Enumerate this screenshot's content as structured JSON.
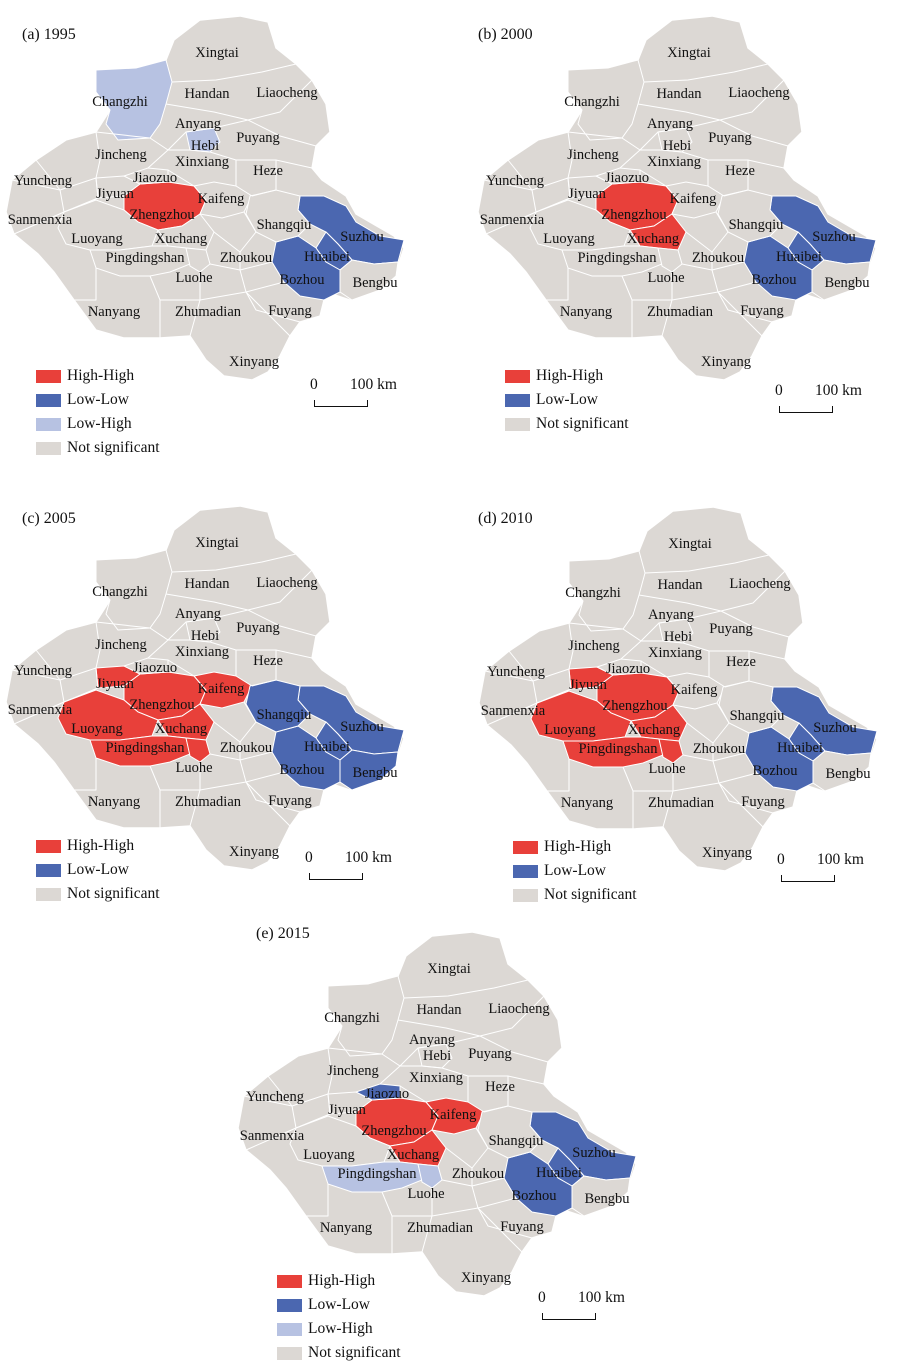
{
  "colors": {
    "high_high": "#e8403a",
    "low_low": "#4b67b0",
    "low_high": "#b7c2e2",
    "not_significant": "#dcd8d4",
    "border": "#ffffff"
  },
  "scale": {
    "zero": "0",
    "distance": "100 km"
  },
  "panels": [
    {
      "title": "(a) 1995",
      "legend": [
        "High-High",
        "Low-Low",
        "Low-High",
        "Not significant"
      ],
      "legend_keys": [
        "high_high",
        "low_low",
        "low_high",
        "not_significant"
      ],
      "classes": {
        "Zhengzhou": "high_high",
        "Suzhou": "low_low",
        "Huaibei": "low_low",
        "Bozhou": "low_low",
        "Changzhi": "low_high",
        "Hebi": "low_high"
      }
    },
    {
      "title": "(b) 2000",
      "legend": [
        "High-High",
        "Low-Low",
        "Not significant"
      ],
      "legend_keys": [
        "high_high",
        "low_low",
        "not_significant"
      ],
      "classes": {
        "Zhengzhou": "high_high",
        "Xuchang": "high_high",
        "Suzhou": "low_low",
        "Huaibei": "low_low",
        "Bozhou": "low_low"
      }
    },
    {
      "title": "(c) 2005",
      "legend": [
        "High-High",
        "Low-Low",
        "Not significant"
      ],
      "legend_keys": [
        "high_high",
        "low_low",
        "not_significant"
      ],
      "classes": {
        "Zhengzhou": "high_high",
        "Luoyang": "high_high",
        "Xuchang": "high_high",
        "Pingdingshan": "high_high",
        "Luohe": "high_high",
        "Jiyuan": "high_high",
        "Kaifeng": "high_high",
        "Suzhou": "low_low",
        "Huaibei": "low_low",
        "Bozhou": "low_low",
        "Bengbu": "low_low",
        "Shangqiu": "low_low"
      }
    },
    {
      "title": "(d) 2010",
      "legend": [
        "High-High",
        "Low-Low",
        "Not significant"
      ],
      "legend_keys": [
        "high_high",
        "low_low",
        "not_significant"
      ],
      "classes": {
        "Zhengzhou": "high_high",
        "Luoyang": "high_high",
        "Xuchang": "high_high",
        "Pingdingshan": "high_high",
        "Luohe": "high_high",
        "Jiyuan": "high_high",
        "Suzhou": "low_low",
        "Huaibei": "low_low",
        "Bozhou": "low_low"
      }
    },
    {
      "title": "(e) 2015",
      "legend": [
        "High-High",
        "Low-Low",
        "Low-High",
        "Not significant"
      ],
      "legend_keys": [
        "high_high",
        "low_low",
        "low_high",
        "not_significant"
      ],
      "classes": {
        "Zhengzhou": "high_high",
        "Kaifeng": "high_high",
        "Xuchang": "high_high",
        "Jiaozuo": "low_low",
        "Suzhou": "low_low",
        "Huaibei": "low_low",
        "Bozhou": "low_low",
        "Pingdingshan": "low_high",
        "Luohe": "low_high"
      }
    }
  ],
  "cities": [
    {
      "id": "Xingtai",
      "name": "Xingtai"
    },
    {
      "id": "Changzhi",
      "name": "Changzhi"
    },
    {
      "id": "Handan",
      "name": "Handan"
    },
    {
      "id": "Liaocheng",
      "name": "Liaocheng"
    },
    {
      "id": "Anyang",
      "name": "Anyang"
    },
    {
      "id": "Hebi",
      "name": "Hebi"
    },
    {
      "id": "Puyang",
      "name": "Puyang"
    },
    {
      "id": "Jincheng",
      "name": "Jincheng"
    },
    {
      "id": "Xinxiang",
      "name": "Xinxiang"
    },
    {
      "id": "Jiaozuo",
      "name": "Jiaozuo"
    },
    {
      "id": "Heze",
      "name": "Heze"
    },
    {
      "id": "Yuncheng",
      "name": "Yuncheng"
    },
    {
      "id": "Jiyuan",
      "name": "Jiyuan"
    },
    {
      "id": "Kaifeng",
      "name": "Kaifeng"
    },
    {
      "id": "Zhengzhou",
      "name": "Zhengzhou"
    },
    {
      "id": "Sanmenxia",
      "name": "Sanmenxia"
    },
    {
      "id": "Luoyang",
      "name": "Luoyang"
    },
    {
      "id": "Xuchang",
      "name": "Xuchang"
    },
    {
      "id": "Shangqiu",
      "name": "Shangqiu"
    },
    {
      "id": "Suzhou",
      "name": "Suzhou"
    },
    {
      "id": "Pingdingshan",
      "name": "Pingdingshan"
    },
    {
      "id": "Zhoukou",
      "name": "Zhoukou"
    },
    {
      "id": "Huaibei",
      "name": "Huaibei"
    },
    {
      "id": "Luohe",
      "name": "Luohe"
    },
    {
      "id": "Bozhou",
      "name": "Bozhou"
    },
    {
      "id": "Bengbu",
      "name": "Bengbu"
    },
    {
      "id": "Nanyang",
      "name": "Nanyang"
    },
    {
      "id": "Zhumadian",
      "name": "Zhumadian"
    },
    {
      "id": "Fuyang",
      "name": "Fuyang"
    },
    {
      "id": "Xinyang",
      "name": "Xinyang"
    }
  ]
}
